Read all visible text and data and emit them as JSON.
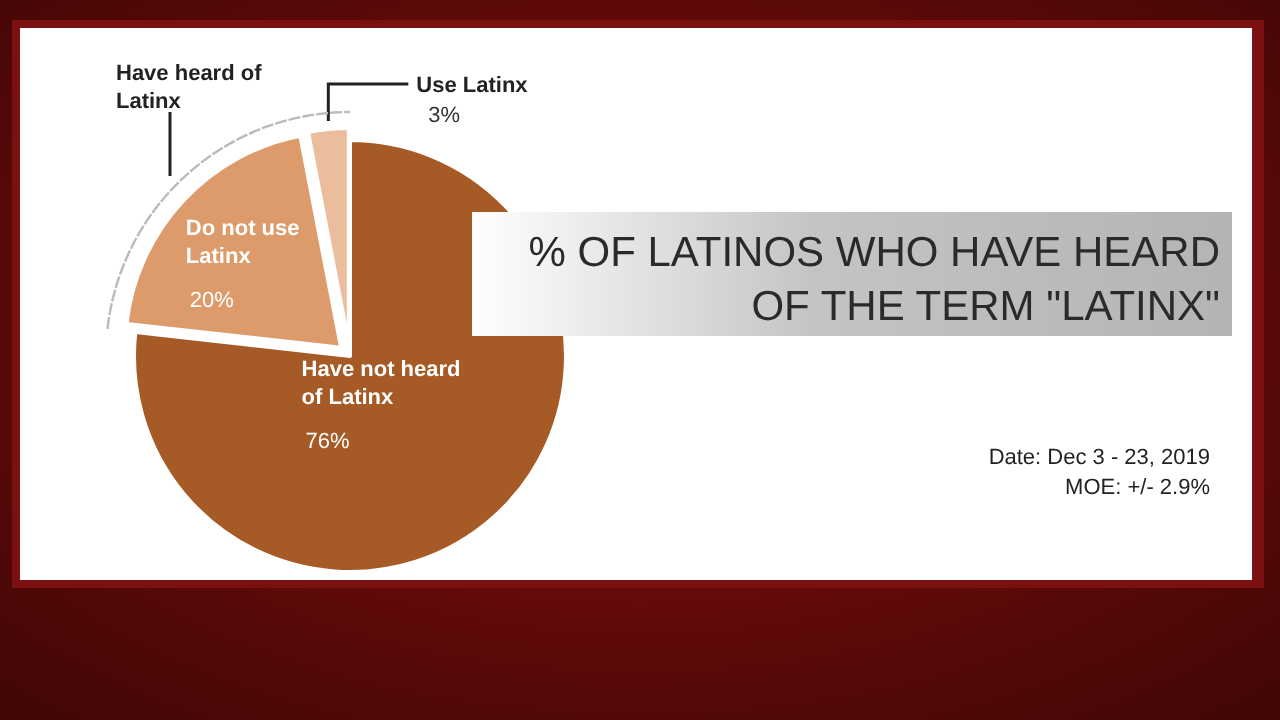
{
  "chart_data": {
    "type": "pie",
    "title": "% OF LATINOS WHO HAVE HEARD OF THE TERM \"LATINX\"",
    "categories": [
      "Have not heard of Latinx",
      "Do not use Latinx",
      "Use Latinx"
    ],
    "values": [
      76,
      20,
      3
    ],
    "colors": [
      "#a65b26",
      "#dd9b6c",
      "#ebbd9d"
    ],
    "value_labels": [
      "76%",
      "20%",
      "3%"
    ],
    "annotations": [
      "Have heard of Latinx",
      "Date: Dec 3 - 23, 2019",
      "MOE: +/- 2.9%"
    ]
  }
}
